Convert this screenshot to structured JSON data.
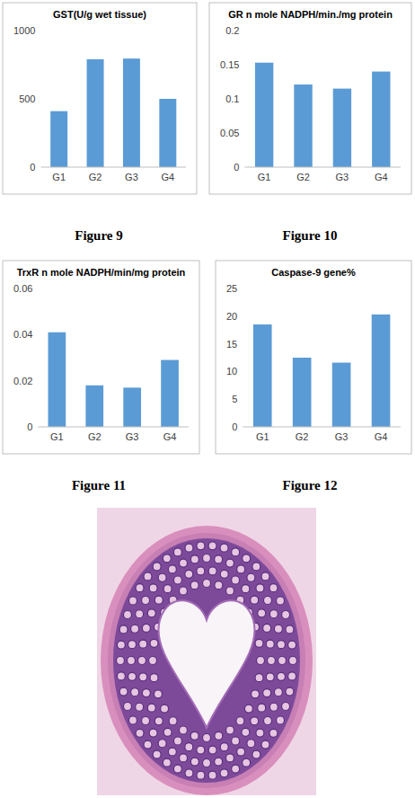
{
  "chart_data": [
    {
      "type": "bar",
      "title": "GST(U/g wet tissue)",
      "categories": [
        "G1",
        "G2",
        "G3",
        "G4"
      ],
      "values": [
        410,
        790,
        795,
        500
      ],
      "color": "#5b9bd5",
      "ylim": [
        0,
        1000
      ],
      "yticks": [
        0,
        500,
        1000
      ],
      "grid": false
    },
    {
      "type": "bar",
      "title": "GR n mole NADPH/min./mg protein",
      "categories": [
        "G1",
        "G2",
        "G3",
        "G4"
      ],
      "values": [
        0.153,
        0.121,
        0.115,
        0.14
      ],
      "color": "#5b9bd5",
      "ylim": [
        0,
        0.2
      ],
      "yticks": [
        0,
        0.05,
        0.1,
        0.15,
        0.2
      ],
      "grid": false
    },
    {
      "type": "bar",
      "title": "TrxR n mole NADPH/min/mg protein",
      "categories": [
        "G1",
        "G2",
        "G3",
        "G4"
      ],
      "values": [
        0.041,
        0.018,
        0.017,
        0.029
      ],
      "color": "#5b9bd5",
      "ylim": [
        0,
        0.06
      ],
      "yticks": [
        0,
        0.02,
        0.04,
        0.06
      ],
      "grid": false
    },
    {
      "type": "bar",
      "title": "Caspase-9 gene%",
      "categories": [
        "G1",
        "G2",
        "G3",
        "G4"
      ],
      "values": [
        18.5,
        12.5,
        11.6,
        20.3
      ],
      "color": "#5b9bd5",
      "ylim": [
        0,
        25
      ],
      "yticks": [
        0,
        5,
        10,
        15,
        20,
        25
      ],
      "grid": false
    }
  ],
  "captions": [
    "Figure 9",
    "Figure 10",
    "Figure 11",
    "Figure 12"
  ]
}
